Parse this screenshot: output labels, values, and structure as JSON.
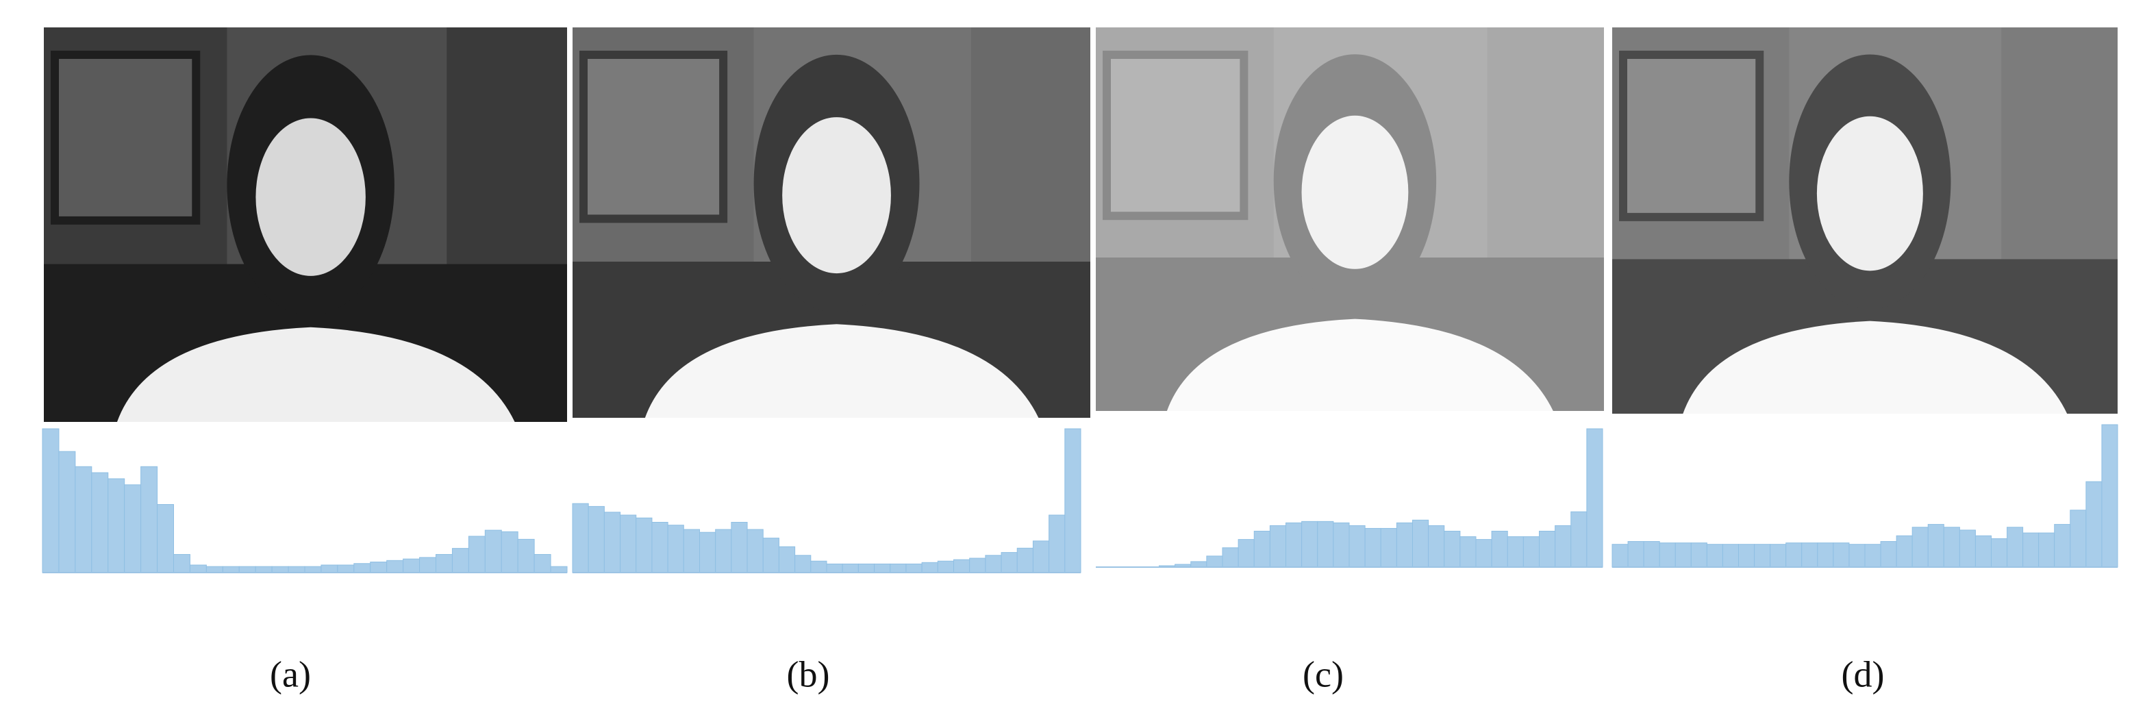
{
  "figure": {
    "panels": [
      {
        "label": "(a)",
        "histogram": [
          95,
          80,
          70,
          66,
          62,
          58,
          70,
          45,
          12,
          5,
          4,
          4,
          4,
          4,
          4,
          4,
          4,
          5,
          5,
          6,
          7,
          8,
          9,
          10,
          12,
          16,
          24,
          28,
          27,
          22,
          12,
          4
        ]
      },
      {
        "label": "(b)",
        "histogram": [
          48,
          46,
          42,
          40,
          38,
          35,
          33,
          30,
          28,
          30,
          35,
          30,
          24,
          18,
          12,
          8,
          6,
          6,
          6,
          6,
          6,
          6,
          7,
          8,
          9,
          10,
          12,
          14,
          17,
          22,
          40,
          100
        ]
      },
      {
        "label": "(c)",
        "histogram": [
          0,
          0,
          0,
          0,
          1,
          2,
          4,
          8,
          14,
          20,
          26,
          30,
          32,
          33,
          33,
          32,
          30,
          28,
          28,
          32,
          34,
          30,
          26,
          22,
          20,
          26,
          22,
          22,
          26,
          30,
          40,
          100
        ]
      },
      {
        "label": "(d)",
        "histogram": [
          16,
          18,
          18,
          17,
          17,
          17,
          16,
          16,
          16,
          16,
          16,
          17,
          17,
          17,
          17,
          16,
          16,
          18,
          22,
          28,
          30,
          28,
          26,
          22,
          20,
          28,
          24,
          24,
          30,
          40,
          60,
          100
        ]
      }
    ]
  }
}
